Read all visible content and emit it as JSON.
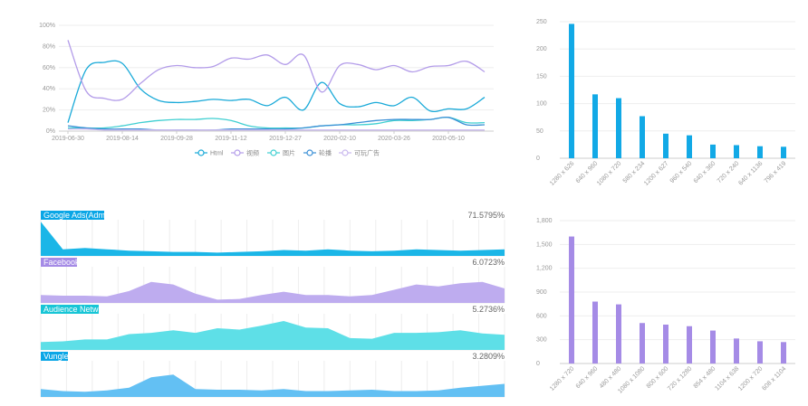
{
  "colors": {
    "html": "#18a9d8",
    "video": "#b39ce9",
    "image": "#3fcfd1",
    "rotation": "#3b8fd6",
    "playable": "#c9b8ee",
    "bar_blue": "#12a9e6",
    "bar_purple": "#a58be6",
    "chip_admob": "#0aa6e6",
    "chip_facebook": "#a58be6",
    "chip_audience": "#17c5d6",
    "chip_vungle": "#0aa6e6",
    "area_admob": "#0fb2e6",
    "area_facebook": "#bba8ee",
    "area_audience": "#55dde6",
    "area_vungle": "#5bbdf2",
    "grid": "#eeeeee",
    "axis": "#cccccc"
  },
  "chart_data": [
    {
      "type": "line",
      "title": "",
      "x_ticks": [
        "2019-06-30",
        "2019-08-14",
        "2019-09-28",
        "2019-11-12",
        "2019-12-27",
        "2020-02-10",
        "2020-03-26",
        "2020-05-10"
      ],
      "y_ticks": [
        "100%",
        "80%",
        "60%",
        "40%",
        "20%",
        "0%"
      ],
      "ylim": [
        0,
        100
      ],
      "legend": [
        "Html",
        "视频",
        "图片",
        "轮播",
        "可玩广告"
      ],
      "legend_position": "bottom",
      "grid": true,
      "series": [
        {
          "name": "Html",
          "values": [
            8,
            58,
            65,
            64,
            40,
            29,
            27,
            28,
            30,
            29,
            30,
            24,
            32,
            20,
            46,
            26,
            23,
            27,
            24,
            32,
            19,
            21,
            21,
            32
          ]
        },
        {
          "name": "视频",
          "values": [
            86,
            38,
            31,
            30,
            45,
            58,
            62,
            60,
            61,
            69,
            68,
            72,
            63,
            72,
            37,
            62,
            63,
            58,
            62,
            56,
            61,
            62,
            66,
            56
          ]
        },
        {
          "name": "图片",
          "values": [
            3,
            3,
            3,
            5,
            8,
            10,
            11,
            11,
            12,
            10,
            5,
            3,
            3,
            3,
            5,
            6,
            6,
            7,
            10,
            10,
            11,
            13,
            8,
            8
          ]
        },
        {
          "name": "轮播",
          "values": [
            5,
            3,
            2,
            2,
            2,
            1,
            1,
            1,
            1,
            2,
            2,
            2,
            2,
            3,
            5,
            6,
            8,
            10,
            11,
            11,
            11,
            13,
            6,
            6
          ]
        },
        {
          "name": "可玩广告",
          "values": [
            2,
            2,
            1,
            1,
            1,
            1,
            1,
            1,
            1,
            1,
            1,
            1,
            1,
            1,
            1,
            1,
            1,
            1,
            1,
            1,
            1,
            1,
            1,
            1
          ]
        }
      ]
    },
    {
      "type": "bar",
      "title": "",
      "categories": [
        "1280 x 626",
        "640 x 960",
        "1080 x 720",
        "580 x 234",
        "1200 x 627",
        "960 x 540",
        "640 x 360",
        "720 x 240",
        "640 x 1136",
        "796 x 419"
      ],
      "values": [
        246,
        117,
        110,
        77,
        45,
        42,
        25,
        24,
        22,
        21
      ],
      "y_ticks": [
        "250",
        "200",
        "150",
        "100",
        "50",
        "0"
      ],
      "ylim": [
        0,
        250
      ],
      "grid": true
    },
    {
      "type": "area",
      "title": "",
      "series": [
        {
          "name": "Google Ads(Admob)",
          "percent": "71.5795%",
          "values": [
            52,
            10,
            12,
            10,
            8,
            7,
            6,
            6,
            5,
            6,
            7,
            9,
            8,
            10,
            8,
            7,
            8,
            10,
            9,
            8,
            9,
            10
          ]
        },
        {
          "name": "Facebook",
          "percent": "6.0723%",
          "values": [
            12,
            11,
            11,
            10,
            18,
            32,
            28,
            14,
            5,
            6,
            12,
            17,
            12,
            12,
            10,
            12,
            20,
            28,
            25,
            30,
            32,
            22
          ]
        },
        {
          "name": "Audience Network",
          "percent": "5.2736%",
          "values": [
            12,
            13,
            16,
            16,
            24,
            26,
            30,
            26,
            33,
            31,
            37,
            44,
            34,
            33,
            18,
            17,
            26,
            26,
            27,
            30,
            25,
            23
          ]
        },
        {
          "name": "Vungle",
          "percent": "3.2809%",
          "values": [
            12,
            9,
            8,
            10,
            14,
            30,
            34,
            12,
            11,
            11,
            10,
            12,
            9,
            9,
            10,
            11,
            9,
            9,
            10,
            14,
            17,
            20
          ]
        }
      ]
    },
    {
      "type": "bar",
      "title": "",
      "categories": [
        "1280 x 720",
        "640 x 960",
        "480 x 480",
        "1080 x 1080",
        "800 x 600",
        "720 x 1280",
        "854 x 480",
        "1104 x 638",
        "1200 x 720",
        "608 x 1104"
      ],
      "values": [
        1600,
        780,
        745,
        510,
        490,
        470,
        415,
        315,
        280,
        270
      ],
      "y_ticks": [
        "1,800",
        "1,500",
        "1,200",
        "900",
        "600",
        "300",
        "0"
      ],
      "ylim": [
        0,
        1800
      ],
      "grid": true
    }
  ]
}
